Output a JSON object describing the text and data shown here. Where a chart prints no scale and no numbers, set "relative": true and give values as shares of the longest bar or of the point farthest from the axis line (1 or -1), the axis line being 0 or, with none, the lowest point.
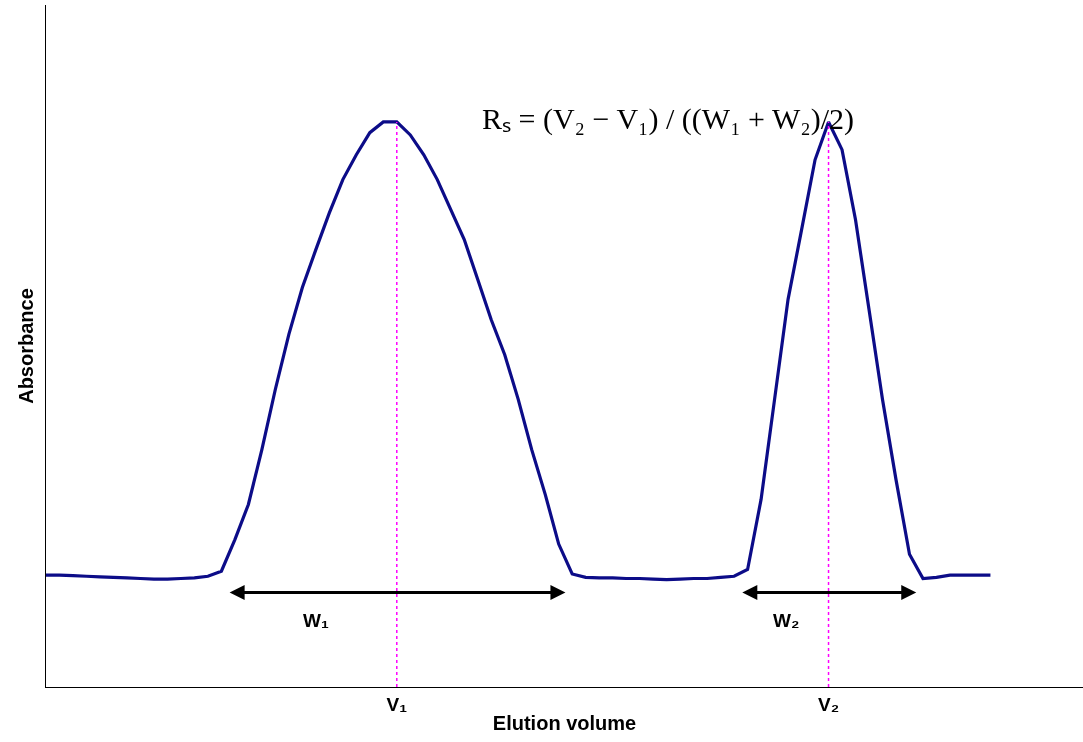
{
  "chart_data": {
    "type": "line",
    "relative": true,
    "color": "#0c0c88",
    "line_style": "solid",
    "xlabel": "Elution volume",
    "ylabel": "Absorbance",
    "categories": [
      null,
      null,
      null,
      null,
      null,
      null,
      null,
      null,
      null,
      null,
      null,
      null,
      null,
      null,
      null,
      null,
      null,
      null,
      null,
      null,
      null,
      null,
      null,
      null,
      null,
      null,
      "V₁",
      null,
      null,
      null,
      null,
      null,
      null,
      null,
      null,
      null,
      null,
      null,
      null,
      null,
      null,
      null,
      null,
      null,
      null,
      null,
      null,
      null,
      null,
      null,
      null,
      null,
      null,
      null,
      null,
      null,
      null,
      null,
      "V₂",
      null,
      null,
      null,
      null,
      null,
      null,
      null,
      null,
      null,
      null,
      null,
      null
    ],
    "values": [
      0.198,
      0.198,
      0.197,
      0.196,
      0.195,
      0.194,
      0.193,
      0.192,
      0.191,
      0.191,
      0.192,
      0.193,
      0.196,
      0.205,
      0.261,
      0.323,
      0.42,
      0.527,
      0.624,
      0.707,
      0.774,
      0.839,
      0.898,
      0.942,
      0.981,
      1,
      1,
      0.977,
      0.942,
      0.898,
      0.845,
      0.792,
      0.721,
      0.65,
      0.588,
      0.509,
      0.42,
      0.341,
      0.253,
      0.2,
      0.194,
      0.193,
      0.193,
      0.192,
      0.192,
      0.191,
      0.19,
      0.191,
      0.192,
      0.192,
      0.194,
      0.196,
      0.208,
      0.332,
      0.509,
      0.686,
      0.809,
      0.933,
      1,
      0.951,
      0.827,
      0.668,
      0.509,
      0.367,
      0.235,
      0.192,
      0.194,
      0.198,
      0.198,
      0.198,
      0.198
    ],
    "ref_lines": [
      {
        "axis": "x",
        "value": "V₁",
        "color": "#ff00ff",
        "line_style": "dotted"
      },
      {
        "axis": "x",
        "value": "V₂",
        "color": "#ff00ff",
        "line_style": "dotted"
      }
    ],
    "annotations": [
      "Rₛ = (V₂ − V₁) / ((W₁ + W₂)/2)",
      "W₁",
      "W₂"
    ]
  }
}
